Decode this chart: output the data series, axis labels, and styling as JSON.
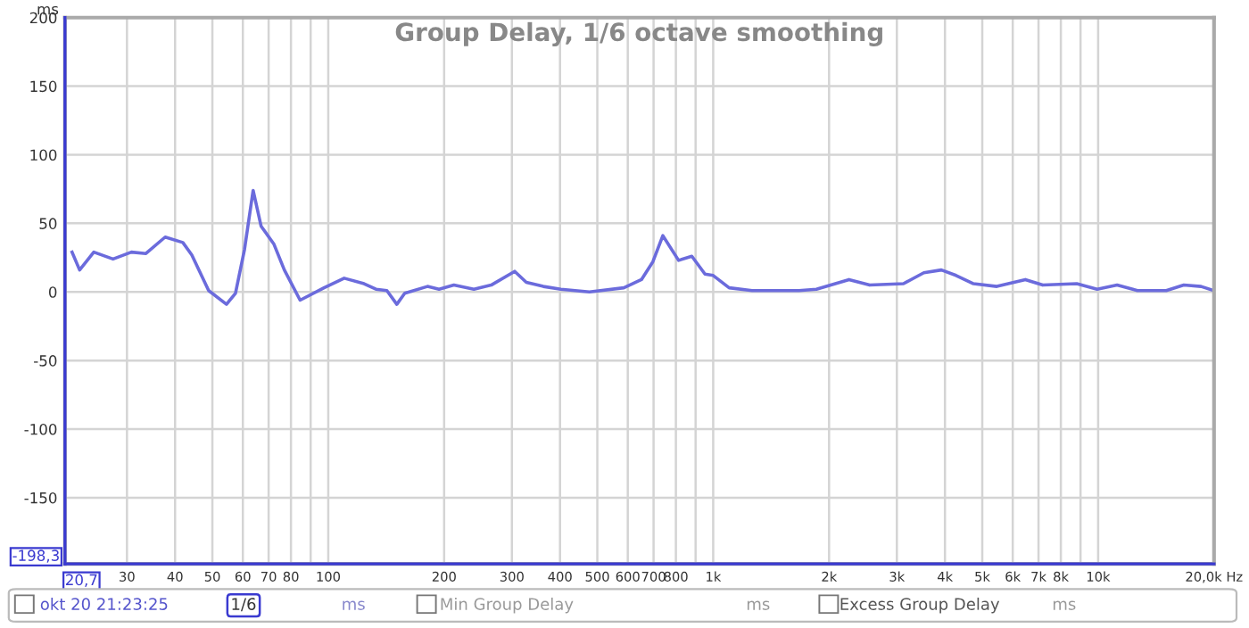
{
  "chart_data": {
    "type": "line",
    "title": "Group Delay, 1/6 octave smoothing",
    "ylabel": "ms",
    "log": "x",
    "x": [
      21.6,
      22.6,
      24.6,
      27.6,
      30.8,
      33.6,
      37.7,
      41.9,
      44.2,
      48.9,
      54.4,
      57.4,
      60.6,
      63.8,
      66.9,
      72.2,
      76.9,
      84.5,
      97.5,
      110,
      123.9,
      133,
      142,
      150.7,
      158,
      181,
      194,
      212,
      239,
      265,
      305,
      327,
      362,
      402,
      477,
      586,
      651,
      697,
      740,
      813,
      880,
      952,
      1000,
      1100,
      1262,
      1670,
      1854,
      2253,
      2550,
      3120,
      3525,
      3915,
      4275,
      4745,
      5455,
      6470,
      7180,
      8800,
      9940,
      11200,
      12650,
      15030,
      16690,
      18510,
      19960
    ],
    "series": [
      {
        "color": "#6b6bdc",
        "values": [
          29,
          16,
          29,
          24,
          29,
          28,
          40,
          36,
          27,
          1,
          -9,
          -1,
          31,
          74,
          48,
          35,
          16,
          -6,
          3,
          10,
          6,
          2,
          1,
          -9,
          -1,
          4,
          2,
          5,
          2,
          5,
          15,
          7,
          4,
          2,
          0,
          3,
          9,
          22,
          41,
          23,
          26,
          13,
          12,
          3,
          1,
          1,
          2,
          9,
          5,
          6,
          14,
          16,
          12,
          6,
          4,
          9,
          5,
          6,
          2,
          5,
          1,
          1,
          5,
          4,
          1
        ]
      }
    ],
    "xlim": [
      20.7,
      20000
    ],
    "ylim": [
      -198.3,
      200
    ],
    "xticks": [
      30,
      40,
      50,
      60,
      70,
      80,
      {
        "value": 90,
        "label": null
      },
      100,
      200,
      300,
      400,
      500,
      600,
      700,
      800,
      {
        "value": 900,
        "label": null
      },
      {
        "value": 1000,
        "label": "1k"
      },
      {
        "value": 2000,
        "label": "2k"
      },
      {
        "value": 3000,
        "label": "3k"
      },
      {
        "value": 4000,
        "label": "4k"
      },
      {
        "value": 5000,
        "label": "5k"
      },
      {
        "value": 6000,
        "label": "6k"
      },
      {
        "value": 7000,
        "label": "7k"
      },
      {
        "value": 8000,
        "label": "8k"
      },
      {
        "value": 9000,
        "label": null
      },
      {
        "value": 10000,
        "label": "10k"
      },
      {
        "value": 20000,
        "label": "20,0k Hz"
      }
    ],
    "yticks": [
      -150,
      -100,
      -50,
      0,
      50,
      100,
      150,
      200
    ],
    "grid": true,
    "legend": false,
    "marker": "none",
    "line_style": "solid",
    "ref_lines": [
      {
        "axis": "x",
        "value": 20.7,
        "label": "20,7",
        "color": "#3a3ad0"
      },
      {
        "axis": "y",
        "value": -198.3,
        "label": "-198,3",
        "color": "#3a3ad0"
      }
    ],
    "annotations": [
      "okt 20 21:23:25",
      "1/6",
      "ms",
      "Min Group Delay",
      "ms",
      "Excess Group Delay",
      "ms"
    ]
  }
}
